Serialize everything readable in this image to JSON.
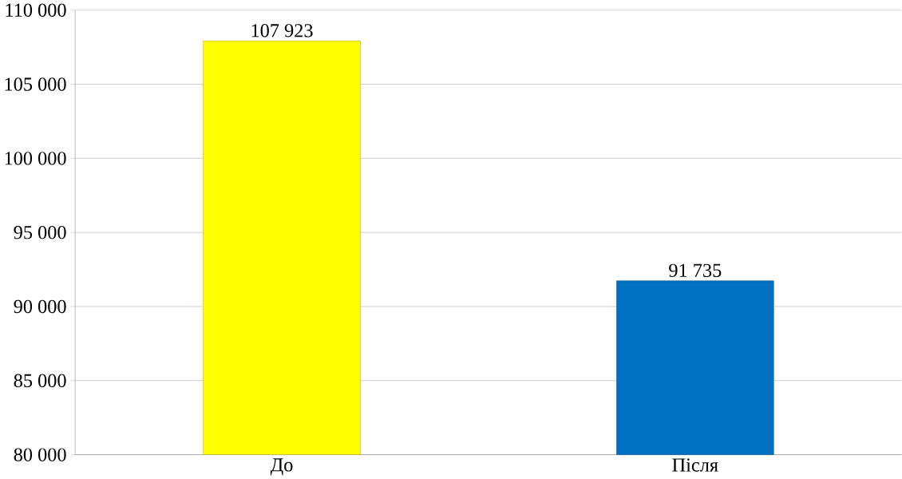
{
  "chart_data": {
    "type": "bar",
    "categories": [
      "До",
      "Після"
    ],
    "values": [
      107923,
      91735
    ],
    "colors": [
      "#ffff00",
      "#0070c0"
    ],
    "ylim": [
      80000,
      110000
    ],
    "yticks": [
      {
        "value": 80000,
        "label": "80 000"
      },
      {
        "value": 85000,
        "label": "85 000"
      },
      {
        "value": 90000,
        "label": "90 000"
      },
      {
        "value": 95000,
        "label": "95 000"
      },
      {
        "value": 100000,
        "label": "100 000"
      },
      {
        "value": 105000,
        "label": "105 000"
      },
      {
        "value": 110000,
        "label": "110 000"
      }
    ],
    "value_labels": [
      "107 923",
      "91 735"
    ],
    "grid": "y"
  }
}
